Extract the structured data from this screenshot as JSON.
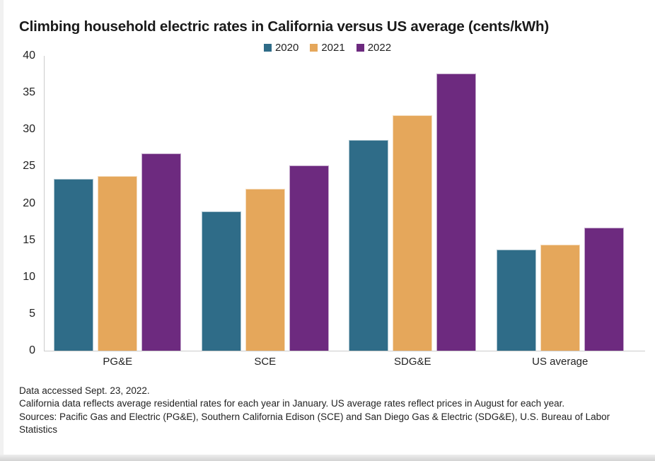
{
  "title": "Climbing household electric rates in California versus US average (cents/kWh)",
  "chart_data": {
    "type": "bar",
    "title": "Climbing household electric rates in California versus US average (cents/kWh)",
    "categories": [
      "PG&E",
      "SCE",
      "SDG&E",
      "US average"
    ],
    "series": [
      {
        "name": "2020",
        "color": "#2F6C88",
        "values": [
          23.3,
          18.9,
          28.6,
          13.7
        ]
      },
      {
        "name": "2021",
        "color": "#E5A75B",
        "values": [
          23.7,
          22.0,
          31.9,
          14.4
        ]
      },
      {
        "name": "2022",
        "color": "#6D2A7F",
        "values": [
          26.8,
          25.1,
          37.6,
          16.7
        ]
      }
    ],
    "ylim": [
      0,
      40
    ],
    "yticks": [
      0,
      5,
      10,
      15,
      20,
      25,
      30,
      35,
      40
    ],
    "xlabel": "",
    "ylabel": "",
    "unit": "cents/kWh",
    "grid": false,
    "legend_position": "top-center"
  },
  "footer": {
    "notes": [
      "Data accessed Sept. 23, 2022.",
      "California data reflects average residential rates for each year in January. US average rates reflect prices in August for each year.",
      "Sources: Pacific Gas and Electric (PG&E), Southern California Edison (SCE) and San Diego Gas & Electric (SDG&E), U.S. Bureau of Labor Statistics"
    ]
  },
  "colors": {
    "axis": "#cccccc",
    "title_text": "#1a1a1a",
    "label_text": "#222222",
    "series_2020": "#2F6C88",
    "series_2021": "#E5A75B",
    "series_2022": "#6D2A7F"
  }
}
